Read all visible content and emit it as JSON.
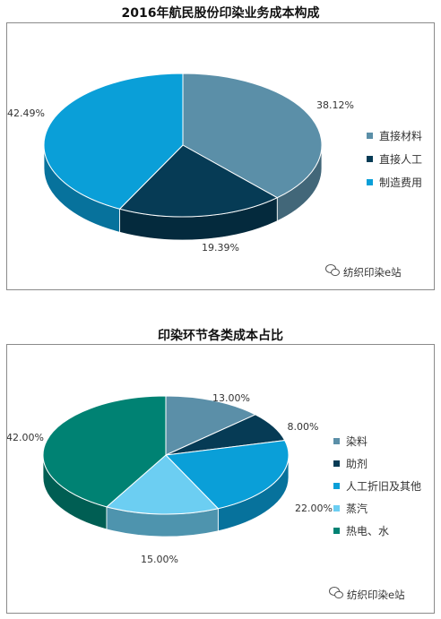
{
  "chart_data": [
    {
      "type": "pie",
      "title": "2016年航民股份印染业务成本构成",
      "categories": [
        "直接材料",
        "直接人工",
        "制造费用"
      ],
      "values": [
        38.12,
        19.39,
        42.49
      ],
      "data_labels": [
        "38.12%",
        "19.39%",
        "42.49%"
      ],
      "colors": [
        "#5B8FA8",
        "#063B55",
        "#0A9FD8"
      ],
      "legend_position": "right",
      "style": "3d"
    },
    {
      "type": "pie",
      "title": "印染环节各类成本占比",
      "categories": [
        "染料",
        "助剂",
        "人工折旧及其他",
        "蒸汽",
        "热电、水"
      ],
      "values": [
        13.0,
        8.0,
        22.0,
        15.0,
        42.0
      ],
      "data_labels": [
        "13.00%",
        "8.00%",
        "22.00%",
        "15.00%",
        "42.00%"
      ],
      "colors": [
        "#5B8FA8",
        "#063B55",
        "#0A9FD8",
        "#6CCEF2",
        "#008273"
      ],
      "legend_position": "right",
      "style": "3d"
    }
  ],
  "watermark": "纺织印染e站",
  "watermark_icon": "wechat-icon"
}
